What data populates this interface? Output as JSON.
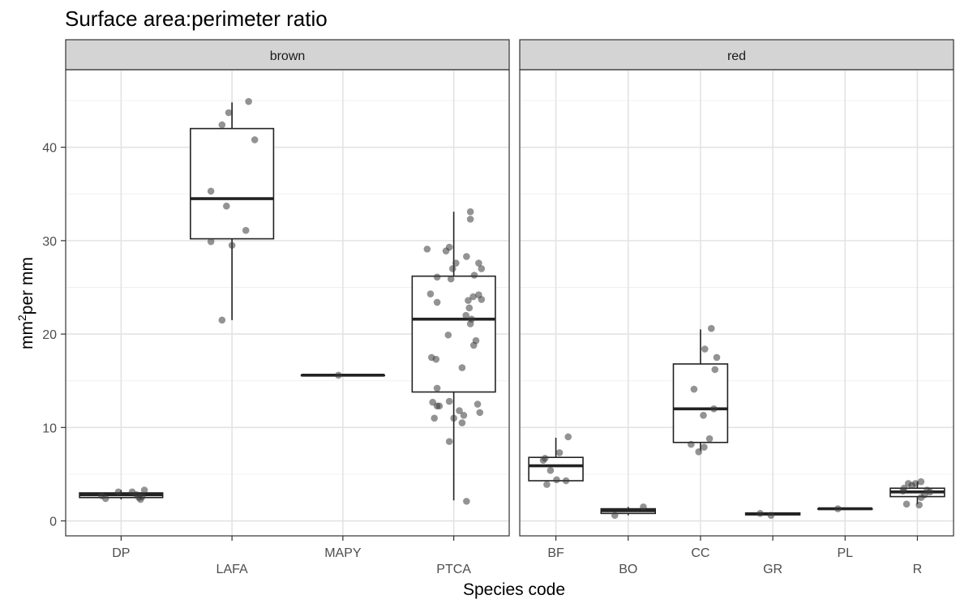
{
  "chart_data": {
    "type": "boxplot",
    "title": "Surface area:perimeter ratio",
    "xlabel": "Species code",
    "ylabel_main": "mm",
    "ylabel_sup": "2",
    "ylabel_rest": "per mm",
    "ylim": [
      -1.6,
      48.3
    ],
    "yticks": [
      0,
      10,
      20,
      30,
      40
    ],
    "grid": true,
    "colors": {
      "point": "#3a3a3a",
      "box_line": "#222222",
      "strip_bg": "#d4d4d4",
      "panel_border": "#333333",
      "grid_major": "#e3e3e3",
      "grid_minor": "#f0f0f0"
    },
    "panels": [
      {
        "name": "brown",
        "categories": [
          "DP",
          "LAFA",
          "MAPY",
          "PTCA"
        ],
        "boxes": [
          {
            "category": "DP",
            "min": 2.3,
            "q1": 2.5,
            "median": 2.8,
            "q3": 3.0,
            "max": 3.3,
            "points": [
              [
                -0.35,
                2.7
              ],
              [
                -0.28,
                2.4
              ],
              [
                -0.05,
                3.1
              ],
              [
                0.2,
                3.1
              ],
              [
                0.28,
                2.8
              ],
              [
                0.32,
                2.5
              ],
              [
                0.35,
                2.3
              ],
              [
                0.38,
                2.6
              ],
              [
                0.42,
                3.3
              ]
            ]
          },
          {
            "category": "LAFA",
            "min": 21.5,
            "q1": 30.2,
            "median": 34.5,
            "q3": 42.0,
            "max": 44.8,
            "points": [
              [
                -0.18,
                21.5
              ],
              [
                -0.38,
                29.9
              ],
              [
                0.0,
                29.5
              ],
              [
                0.25,
                31.1
              ],
              [
                -0.1,
                33.7
              ],
              [
                -0.38,
                35.3
              ],
              [
                -0.18,
                42.4
              ],
              [
                -0.06,
                43.7
              ],
              [
                0.3,
                44.9
              ],
              [
                0.41,
                40.8
              ]
            ]
          },
          {
            "category": "MAPY",
            "min": 15.6,
            "q1": 15.6,
            "median": 15.6,
            "q3": 15.6,
            "max": 15.6,
            "points": [
              [
                -0.08,
                15.6
              ]
            ]
          },
          {
            "category": "PTCA",
            "min": 2.2,
            "q1": 13.8,
            "median": 21.6,
            "q3": 26.2,
            "max": 33.1,
            "points": [
              [
                0.23,
                2.1
              ],
              [
                -0.08,
                8.5
              ],
              [
                0.0,
                11.0
              ],
              [
                0.15,
                10.5
              ],
              [
                -0.35,
                11.0
              ],
              [
                -0.3,
                12.3
              ],
              [
                -0.38,
                12.7
              ],
              [
                -0.26,
                12.3
              ],
              [
                -0.08,
                12.8
              ],
              [
                0.1,
                11.8
              ],
              [
                0.18,
                11.3
              ],
              [
                0.43,
                12.5
              ],
              [
                0.47,
                11.6
              ],
              [
                -0.3,
                14.2
              ],
              [
                0.15,
                16.4
              ],
              [
                -0.32,
                17.3
              ],
              [
                -0.4,
                17.5
              ],
              [
                -0.1,
                19.9
              ],
              [
                0.36,
                18.8
              ],
              [
                0.4,
                19.3
              ],
              [
                0.3,
                21.1
              ],
              [
                0.32,
                21.6
              ],
              [
                0.22,
                22.0
              ],
              [
                -0.3,
                23.4
              ],
              [
                0.26,
                23.6
              ],
              [
                0.28,
                22.8
              ],
              [
                0.35,
                24.0
              ],
              [
                0.45,
                24.2
              ],
              [
                0.5,
                23.7
              ],
              [
                -0.42,
                24.3
              ],
              [
                -0.3,
                26.1
              ],
              [
                -0.05,
                25.9
              ],
              [
                -0.02,
                27.0
              ],
              [
                0.04,
                27.6
              ],
              [
                0.37,
                26.3
              ],
              [
                0.45,
                27.6
              ],
              [
                0.5,
                27.0
              ],
              [
                -0.48,
                29.1
              ],
              [
                -0.14,
                28.9
              ],
              [
                -0.08,
                29.3
              ],
              [
                0.23,
                28.3
              ],
              [
                0.3,
                32.3
              ],
              [
                0.3,
                33.1
              ]
            ]
          }
        ]
      },
      {
        "name": "red",
        "categories": [
          "BF",
          "BO",
          "CC",
          "GR",
          "PL",
          "R"
        ],
        "boxes": [
          {
            "category": "BF",
            "min": 4.3,
            "q1": 4.3,
            "median": 5.9,
            "q3": 6.8,
            "max": 8.9,
            "points": [
              [
                -0.35,
                6.5
              ],
              [
                -0.3,
                6.7
              ],
              [
                -0.25,
                3.9
              ],
              [
                -0.15,
                5.4
              ],
              [
                0.02,
                4.4
              ],
              [
                0.1,
                7.3
              ],
              [
                0.28,
                4.3
              ],
              [
                0.34,
                9.0
              ]
            ]
          },
          {
            "category": "BO",
            "min": 0.6,
            "q1": 0.8,
            "median": 1.1,
            "q3": 1.3,
            "max": 1.5,
            "points": [
              [
                -0.37,
                0.6
              ],
              [
                0.42,
                1.5
              ]
            ]
          },
          {
            "category": "CC",
            "min": 7.5,
            "q1": 8.4,
            "median": 12.0,
            "q3": 16.8,
            "max": 20.5,
            "points": [
              [
                -0.26,
                8.2
              ],
              [
                -0.18,
                14.1
              ],
              [
                -0.05,
                7.4
              ],
              [
                0.1,
                7.9
              ],
              [
                0.08,
                11.3
              ],
              [
                0.12,
                18.4
              ],
              [
                0.25,
                8.8
              ],
              [
                0.3,
                20.6
              ],
              [
                0.37,
                12.0
              ],
              [
                0.4,
                16.2
              ],
              [
                0.45,
                17.5
              ]
            ]
          },
          {
            "category": "GR",
            "min": 0.6,
            "q1": 0.65,
            "median": 0.75,
            "q3": 0.85,
            "max": 0.9,
            "points": [
              [
                -0.35,
                0.8
              ],
              [
                -0.05,
                0.6
              ]
            ]
          },
          {
            "category": "PL",
            "min": 1.3,
            "q1": 1.3,
            "median": 1.3,
            "q3": 1.3,
            "max": 1.3,
            "points": [
              [
                -0.2,
                1.3
              ]
            ]
          },
          {
            "category": "R",
            "min": 1.8,
            "q1": 2.6,
            "median": 3.1,
            "q3": 3.5,
            "max": 4.2,
            "points": [
              [
                -0.4,
                3.2
              ],
              [
                -0.25,
                4.0
              ],
              [
                -0.15,
                3.8
              ],
              [
                -0.05,
                4.0
              ],
              [
                0.1,
                4.2
              ],
              [
                -0.3,
                1.8
              ],
              [
                0.1,
                2.5
              ],
              [
                0.2,
                2.8
              ],
              [
                0.27,
                3.3
              ],
              [
                0.35,
                3.1
              ],
              [
                0.05,
                1.7
              ],
              [
                -0.37,
                3.5
              ]
            ]
          }
        ]
      }
    ]
  }
}
